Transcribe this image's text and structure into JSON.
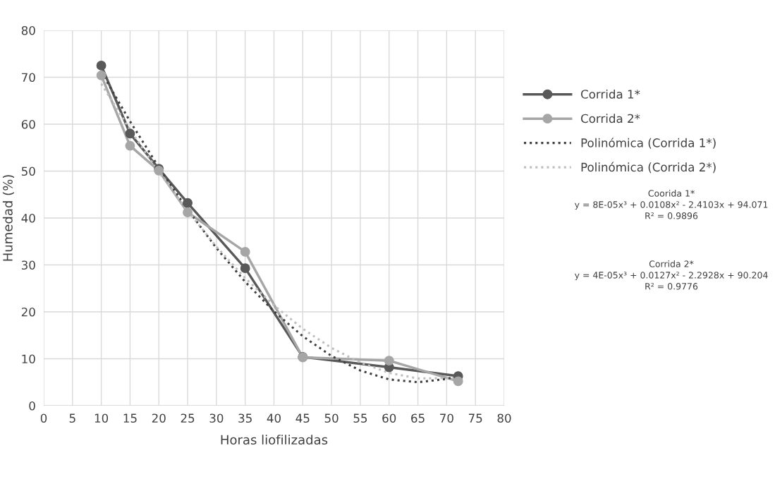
{
  "chart_data": {
    "type": "line",
    "xlabel": "Horas liofilizadas",
    "ylabel": "Humedad (%)",
    "xlim": [
      0,
      80
    ],
    "xticks": [
      0,
      5,
      10,
      15,
      20,
      25,
      30,
      35,
      40,
      45,
      50,
      55,
      60,
      65,
      70,
      75,
      80
    ],
    "ylim": [
      0,
      80
    ],
    "yticks": [
      0,
      10,
      20,
      30,
      40,
      50,
      60,
      70,
      80
    ],
    "grid": true,
    "legend": "right",
    "series": [
      {
        "name": "Corrida 1*",
        "color": "#595959",
        "marker": "circle",
        "line_style": "solid",
        "x": [
          10,
          15,
          20,
          25,
          35,
          45,
          60,
          72
        ],
        "values": [
          72.5,
          58.0,
          50.5,
          43.2,
          29.3,
          10.4,
          8.2,
          6.3
        ]
      },
      {
        "name": "Corrida 2*",
        "color": "#a6a6a6",
        "marker": "circle",
        "line_style": "solid",
        "x": [
          10,
          15,
          20,
          25,
          35,
          45,
          60,
          72
        ],
        "values": [
          70.4,
          55.4,
          50.1,
          41.2,
          32.8,
          10.3,
          9.6,
          5.2
        ]
      },
      {
        "name": "Polinómica (Corrida 1*)",
        "color": "#404040",
        "marker": "none",
        "line_style": "dotted",
        "x": [
          10,
          15,
          20,
          25,
          30,
          35,
          40,
          45,
          50,
          55,
          60,
          65,
          70,
          72
        ],
        "values": [
          71.1,
          60.6,
          50.8,
          41.8,
          33.6,
          26.4,
          20.1,
          14.8,
          10.6,
          7.5,
          5.6,
          5.0,
          5.7,
          6.4
        ]
      },
      {
        "name": "Polinómica (Corrida 2*)",
        "color": "#bfbfbf",
        "marker": "none",
        "line_style": "dotted",
        "x": [
          10,
          15,
          20,
          25,
          30,
          35,
          40,
          45,
          50,
          55,
          60,
          65,
          72
        ],
        "values": [
          68.6,
          58.8,
          49.8,
          41.5,
          33.9,
          27.2,
          21.4,
          16.4,
          12.3,
          9.2,
          7.0,
          5.8,
          5.9
        ]
      }
    ],
    "annotations": [
      "Coorida 1*\ny = 8E-05x³ + 0.0108x² - 2.4103x + 94.071\nR² = 0.9896",
      "Corrida 2*\ny = 4E-05x³ + 0.0127x² - 2.2928x + 90.204\nR² = 0.9776"
    ]
  }
}
